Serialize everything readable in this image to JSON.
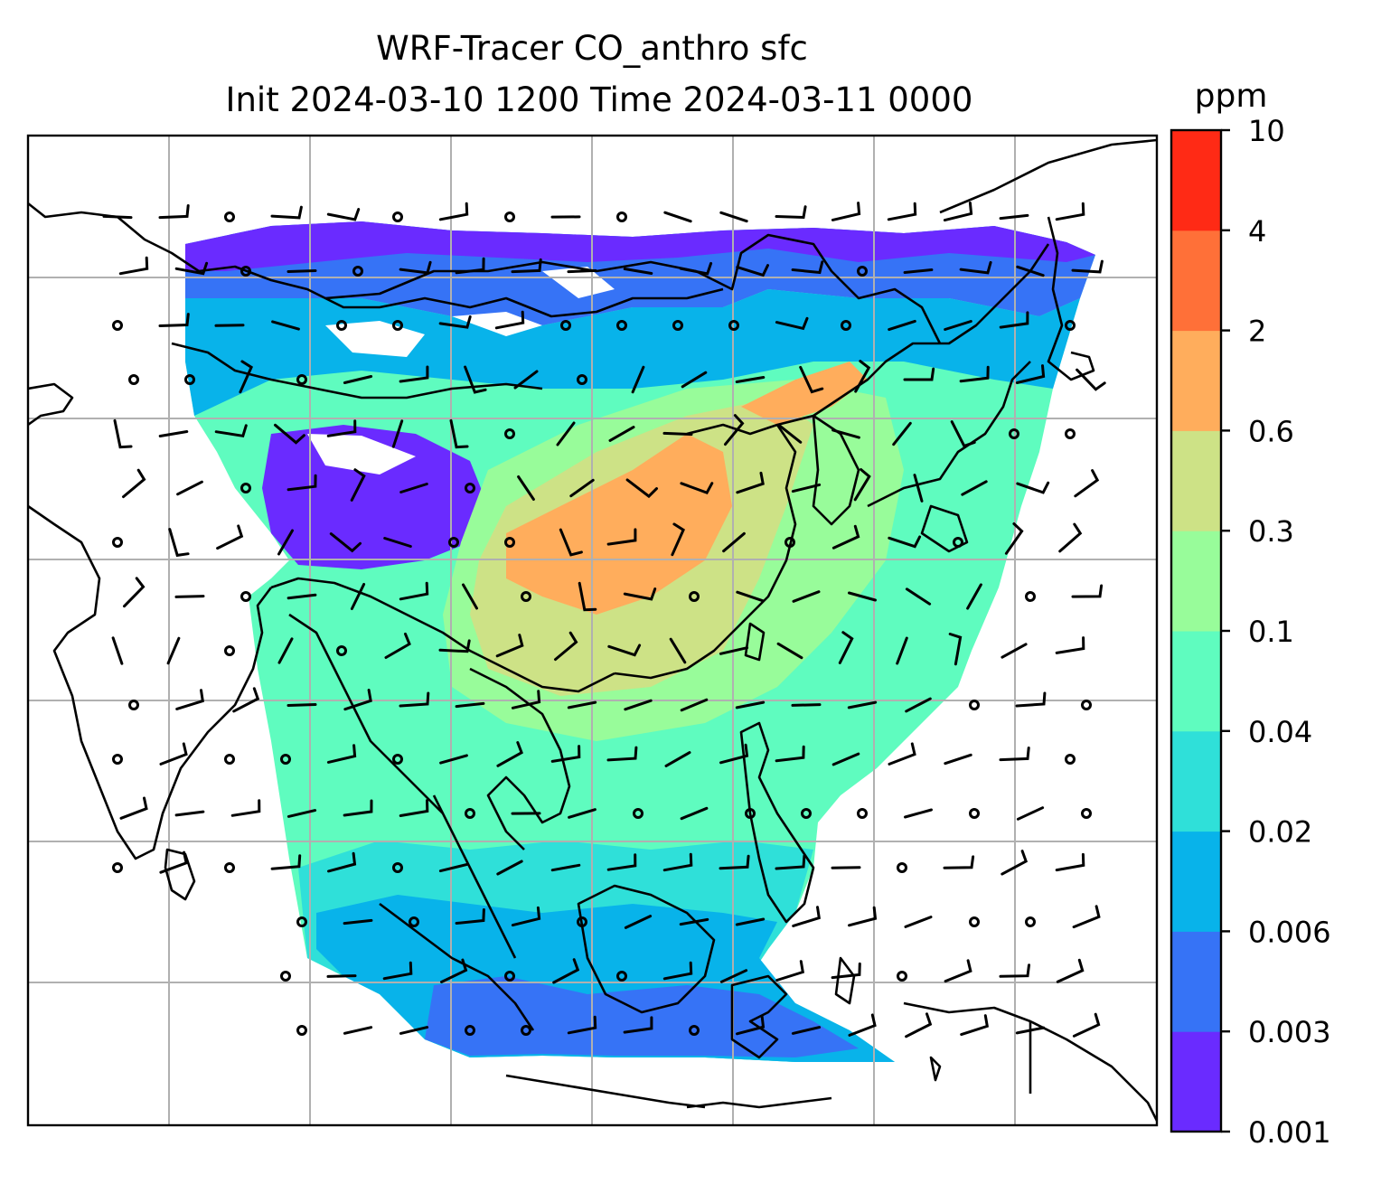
{
  "title": {
    "line1": "WRF-Tracer CO_anthro sfc",
    "line2": "Init 2024-03-10 1200 Time 2024-03-11 0000"
  },
  "colorbar": {
    "unit": "ppm",
    "levels": [
      "0.001",
      "0.003",
      "0.006",
      "0.02",
      "0.04",
      "0.1",
      "0.3",
      "0.6",
      "2",
      "4",
      "10"
    ],
    "colors": [
      "#6a2bff",
      "#3673f6",
      "#08b3ea",
      "#2fe0d9",
      "#5ffcbf",
      "#98fc9a",
      "#cde286",
      "#ffad5c",
      "#ff7038",
      "#ff2a15"
    ]
  },
  "map": {
    "gridlines": true,
    "coastline_color": "#000000",
    "wind_barb_color": "#000000",
    "grid_color": "#b0b0b0"
  }
}
